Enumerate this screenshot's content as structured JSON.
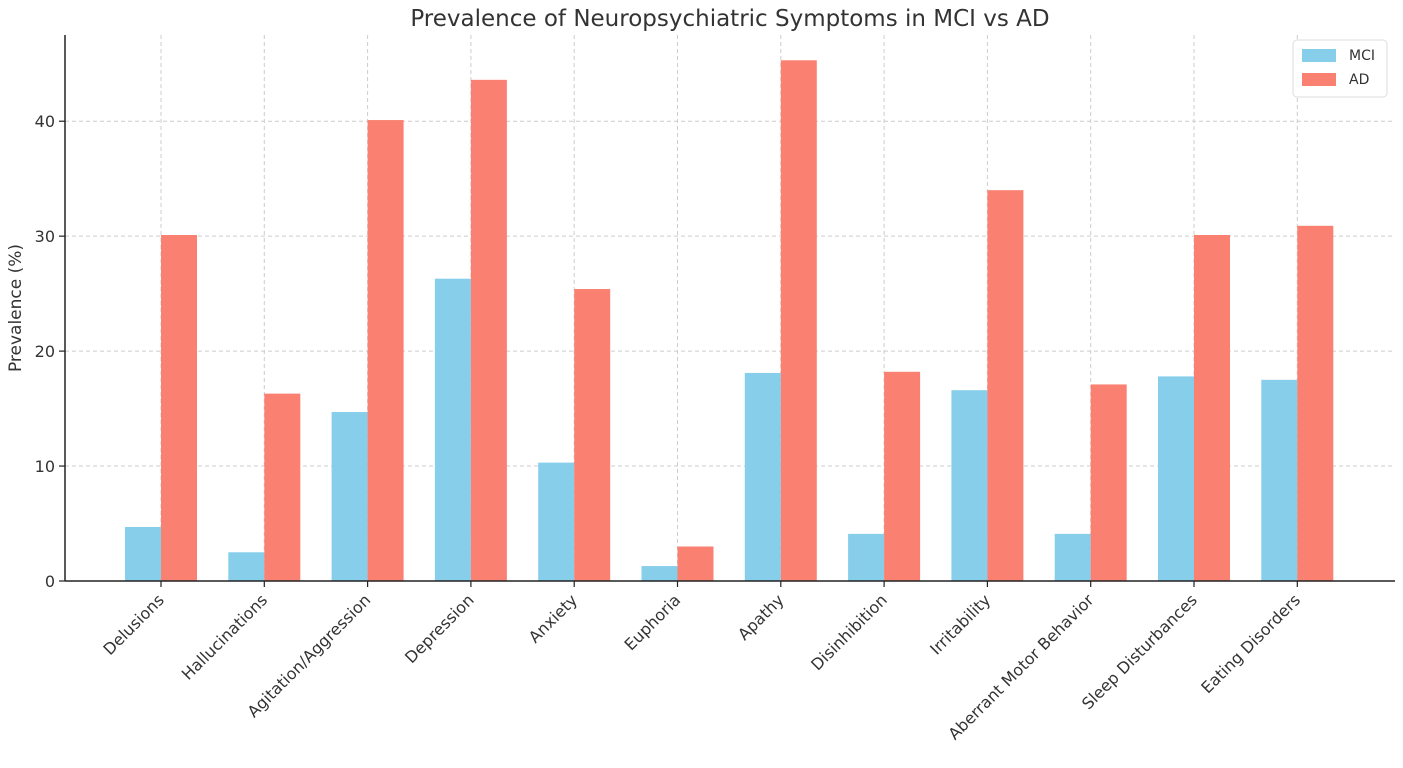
{
  "chart_data": {
    "type": "bar",
    "title": "Prevalence of Neuropsychiatric Symptoms in MCI vs AD",
    "xlabel": "",
    "ylabel": "Prevalence (%)",
    "ylim": [
      0,
      47.5
    ],
    "yticks": [
      0,
      10,
      20,
      30,
      40
    ],
    "grid": true,
    "legend_position": "top-right",
    "categories": [
      "Delusions",
      "Hallucinations",
      "Agitation/Aggression",
      "Depression",
      "Anxiety",
      "Euphoria",
      "Apathy",
      "Disinhibition",
      "Irritability",
      "Aberrant Motor Behavior",
      "Sleep Disturbances",
      "Eating Disorders"
    ],
    "series": [
      {
        "name": "MCI",
        "color": "#87ceeb",
        "values": [
          4.7,
          2.5,
          14.7,
          26.3,
          10.3,
          1.3,
          18.1,
          4.1,
          16.6,
          4.1,
          17.8,
          17.5
        ]
      },
      {
        "name": "AD",
        "color": "#fa8072",
        "values": [
          30.1,
          16.3,
          40.1,
          43.6,
          25.4,
          3.0,
          45.3,
          18.2,
          34.0,
          17.1,
          30.1,
          30.9
        ]
      }
    ]
  }
}
